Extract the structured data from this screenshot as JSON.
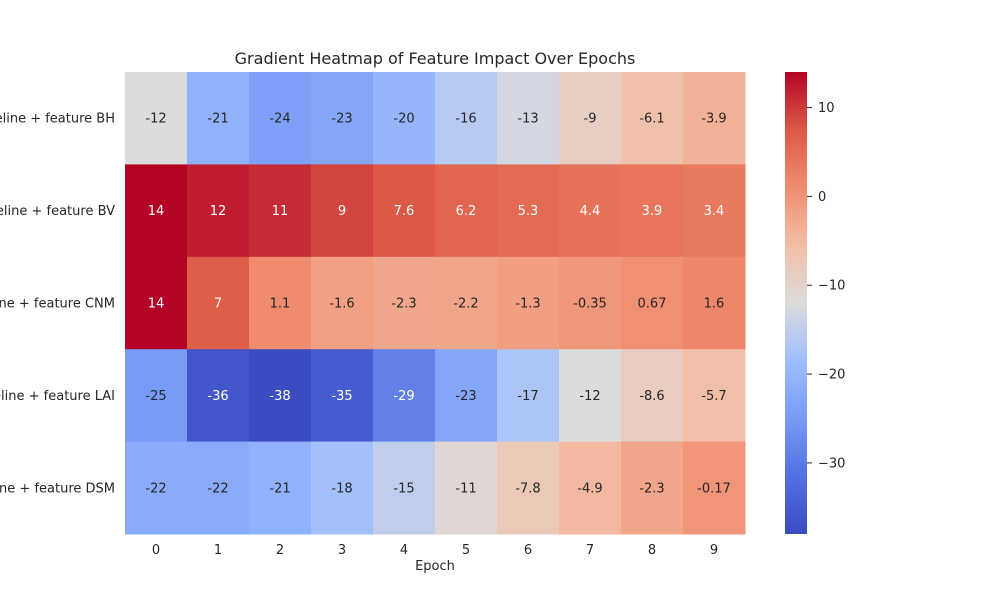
{
  "chart_data": {
    "type": "heatmap",
    "title": "Gradient Heatmap of Feature Impact Over Epochs",
    "xlabel": "Epoch",
    "ylabel": "",
    "x_categories": [
      "0",
      "1",
      "2",
      "3",
      "4",
      "5",
      "6",
      "7",
      "8",
      "9"
    ],
    "y_categories": [
      "Baseline + feature BH",
      "Baseline + feature BV",
      "Baseline + feature CNM",
      "Baseline + feature LAI",
      "Baseline + feature DSM"
    ],
    "values": [
      [
        -12,
        -21,
        -24,
        -23,
        -20,
        -16,
        -13,
        -9,
        -6.1,
        -3.9
      ],
      [
        14,
        12,
        11,
        9,
        7.6,
        6.2,
        5.3,
        4.4,
        3.9,
        3.4
      ],
      [
        14,
        7,
        1.1,
        -1.6,
        -2.3,
        -2.2,
        -1.3,
        -0.35,
        0.67,
        1.6
      ],
      [
        -25,
        -36,
        -38,
        -35,
        -29,
        -23,
        -17,
        -12,
        -8.6,
        -5.7
      ],
      [
        -22,
        -22,
        -21,
        -18,
        -15,
        -11,
        -7.8,
        -4.9,
        -2.3,
        -0.17
      ]
    ],
    "labels": [
      [
        "-12",
        "-21",
        "-24",
        "-23",
        "-20",
        "-16",
        "-13",
        "-9",
        "-6.1",
        "-3.9"
      ],
      [
        "14",
        "12",
        "11",
        "9",
        "7.6",
        "6.2",
        "5.3",
        "4.4",
        "3.9",
        "3.4"
      ],
      [
        "14",
        "7",
        "1.1",
        "-1.6",
        "-2.3",
        "-2.2",
        "-1.3",
        "-0.35",
        "0.67",
        "1.6"
      ],
      [
        "-25",
        "-36",
        "-38",
        "-35",
        "-29",
        "-23",
        "-17",
        "-12",
        "-8.6",
        "-5.7"
      ],
      [
        "-22",
        "-22",
        "-21",
        "-18",
        "-15",
        "-11",
        "-7.8",
        "-4.9",
        "-2.3",
        "-0.17"
      ]
    ],
    "colormap": "coolwarm",
    "colorbar": {
      "min": -38,
      "max": 14,
      "ticks": [
        "10",
        "0",
        "−10",
        "−20",
        "−30"
      ]
    },
    "grid": false,
    "colors": {
      "low": "#3b4cc0",
      "mid": "#dddcdc",
      "high": "#b40426"
    }
  }
}
